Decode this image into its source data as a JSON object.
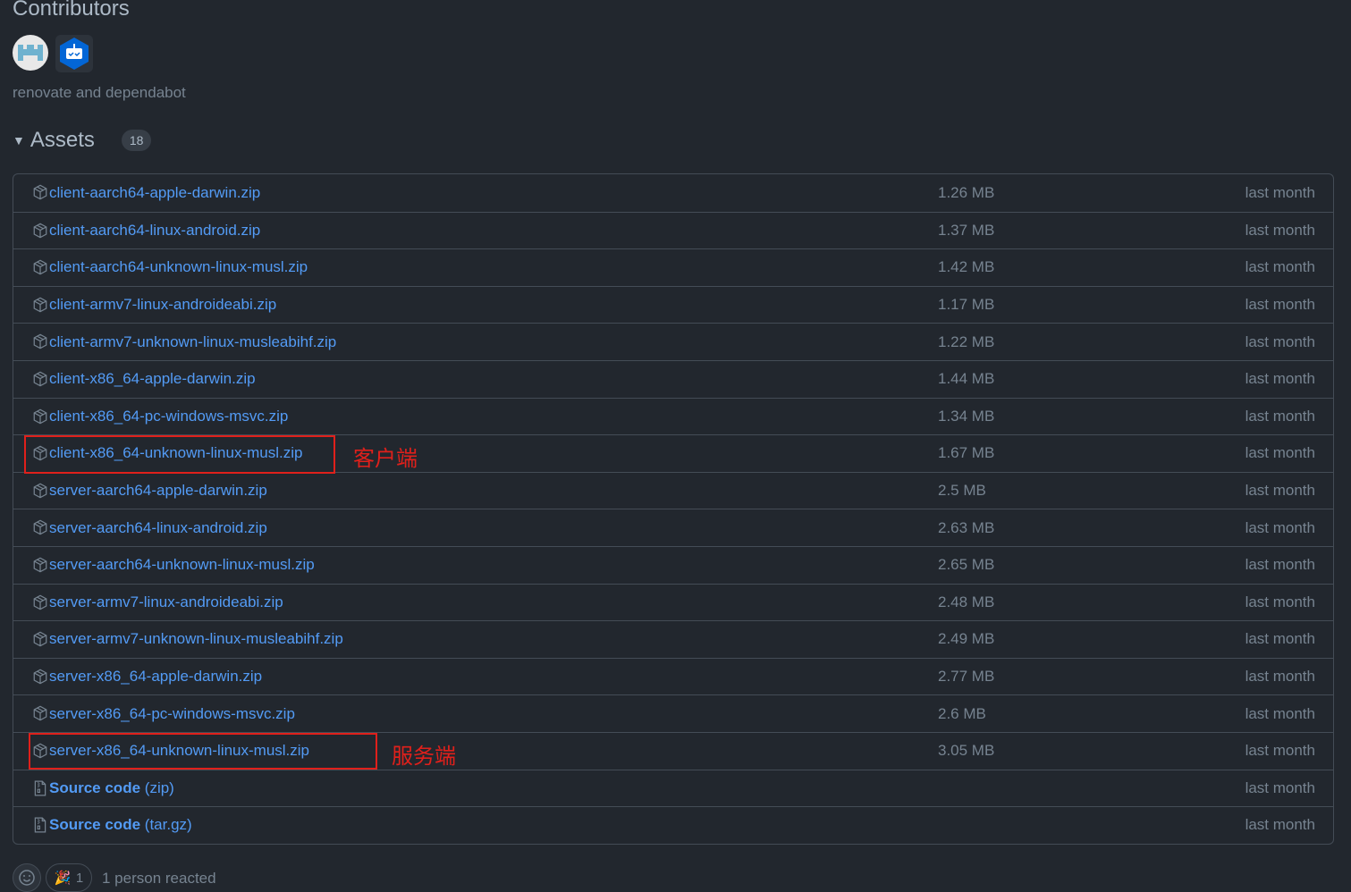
{
  "contributors": {
    "title": "Contributors",
    "avatars": [
      "renovate-avatar",
      "dependabot-avatar"
    ],
    "text": "renovate and dependabot"
  },
  "assets": {
    "title": "Assets",
    "count": "18",
    "items": [
      {
        "name": "client-aarch64-apple-darwin.zip",
        "size": "1.26 MB",
        "date": "last month"
      },
      {
        "name": "client-aarch64-linux-android.zip",
        "size": "1.37 MB",
        "date": "last month"
      },
      {
        "name": "client-aarch64-unknown-linux-musl.zip",
        "size": "1.42 MB",
        "date": "last month"
      },
      {
        "name": "client-armv7-linux-androideabi.zip",
        "size": "1.17 MB",
        "date": "last month"
      },
      {
        "name": "client-armv7-unknown-linux-musleabihf.zip",
        "size": "1.22 MB",
        "date": "last month"
      },
      {
        "name": "client-x86_64-apple-darwin.zip",
        "size": "1.44 MB",
        "date": "last month"
      },
      {
        "name": "client-x86_64-pc-windows-msvc.zip",
        "size": "1.34 MB",
        "date": "last month"
      },
      {
        "name": "client-x86_64-unknown-linux-musl.zip",
        "size": "1.67 MB",
        "date": "last month"
      },
      {
        "name": "server-aarch64-apple-darwin.zip",
        "size": "2.5 MB",
        "date": "last month"
      },
      {
        "name": "server-aarch64-linux-android.zip",
        "size": "2.63 MB",
        "date": "last month"
      },
      {
        "name": "server-aarch64-unknown-linux-musl.zip",
        "size": "2.65 MB",
        "date": "last month"
      },
      {
        "name": "server-armv7-linux-androideabi.zip",
        "size": "2.48 MB",
        "date": "last month"
      },
      {
        "name": "server-armv7-unknown-linux-musleabihf.zip",
        "size": "2.49 MB",
        "date": "last month"
      },
      {
        "name": "server-x86_64-apple-darwin.zip",
        "size": "2.77 MB",
        "date": "last month"
      },
      {
        "name": "server-x86_64-pc-windows-msvc.zip",
        "size": "2.6 MB",
        "date": "last month"
      },
      {
        "name": "server-x86_64-unknown-linux-musl.zip",
        "size": "3.05 MB",
        "date": "last month"
      },
      {
        "name": "Source code",
        "suffix": "(zip)",
        "size": "",
        "date": "last month",
        "source": true
      },
      {
        "name": "Source code",
        "suffix": "(tar.gz)",
        "size": "",
        "date": "last month",
        "source": true
      }
    ]
  },
  "annotations": [
    {
      "text": "客户端",
      "row": 7,
      "color": "#e0201b"
    },
    {
      "text": "服务端",
      "row": 15,
      "color": "#e0201b"
    }
  ],
  "reactions": {
    "emoji": "tada",
    "count": "1",
    "text": "1 person reacted"
  }
}
